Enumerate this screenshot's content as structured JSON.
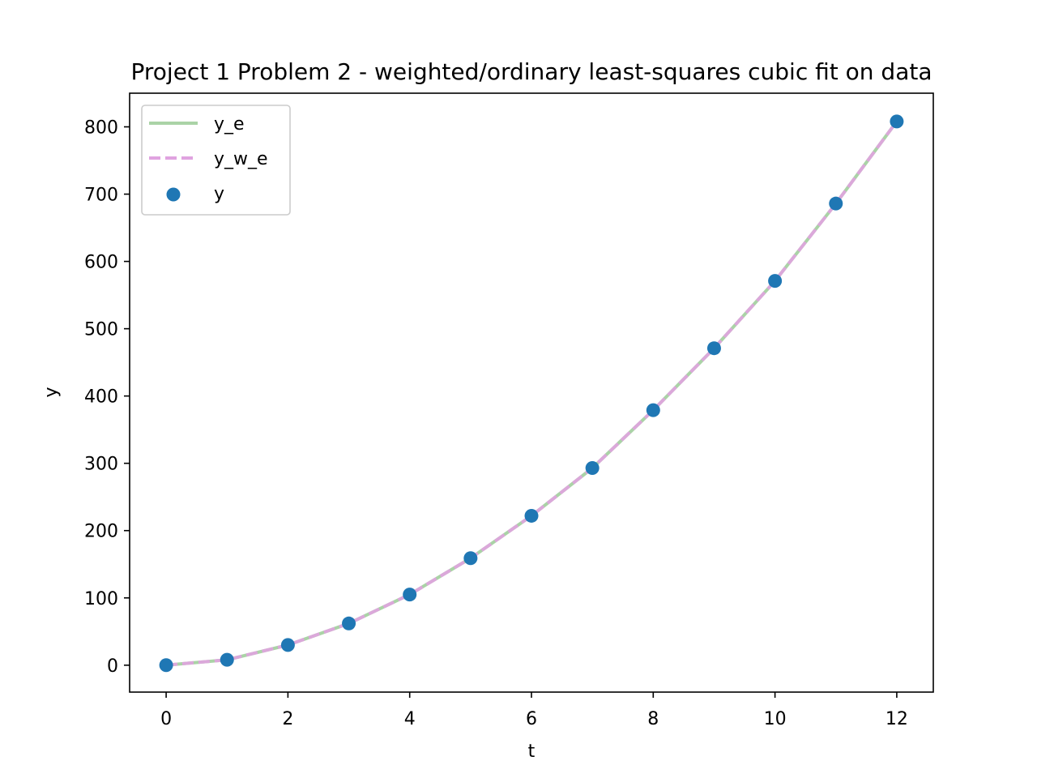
{
  "chart_data": {
    "type": "line",
    "title": "Project 1 Problem 2 - weighted/ordinary least-squares cubic fit on data",
    "xlabel": "t",
    "ylabel": "y",
    "xlim": [
      -0.6,
      12.6
    ],
    "ylim": [
      -40,
      850
    ],
    "x_ticks": [
      0,
      2,
      4,
      6,
      8,
      10,
      12
    ],
    "y_ticks": [
      0,
      100,
      200,
      300,
      400,
      500,
      600,
      700,
      800
    ],
    "grid": false,
    "legend": "upper-left",
    "x": [
      0,
      1,
      2,
      3,
      4,
      5,
      6,
      7,
      8,
      9,
      10,
      11,
      12
    ],
    "series": [
      {
        "name": "y_e",
        "kind": "line",
        "style": "solid",
        "color": "#aad3a6",
        "values": [
          0,
          8,
          30,
          62,
          105,
          159,
          222,
          293,
          379,
          471,
          571,
          686,
          808
        ]
      },
      {
        "name": "y_w_e",
        "kind": "line",
        "style": "dashed",
        "color": "#e0a3e0",
        "values": [
          0,
          8,
          30,
          62,
          105,
          159,
          222,
          293,
          379,
          471,
          571,
          686,
          808
        ]
      },
      {
        "name": "y",
        "kind": "scatter",
        "color": "#1f77b4",
        "values": [
          0,
          8,
          30,
          62,
          105,
          159,
          222,
          293,
          379,
          471,
          571,
          686,
          808
        ]
      }
    ]
  }
}
